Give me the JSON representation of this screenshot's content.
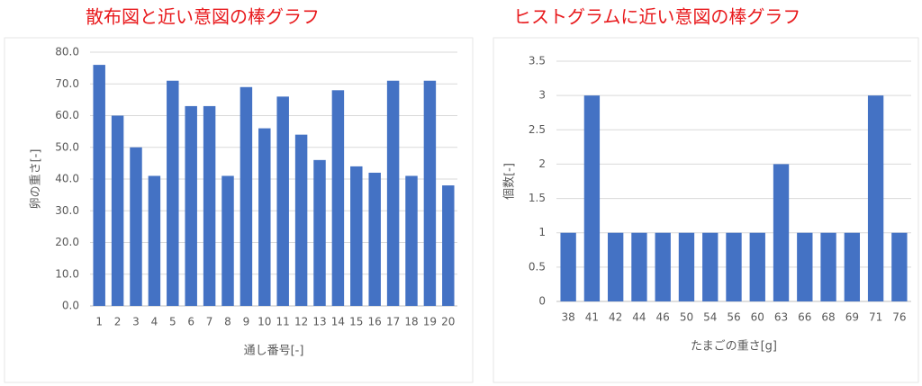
{
  "chart_data": [
    {
      "type": "bar",
      "title": "散布図と近い意図の棒グラフ",
      "x_label": "通し番号[-]",
      "y_label": "卵の重さ[-]",
      "categories": [
        "1",
        "2",
        "3",
        "4",
        "5",
        "6",
        "7",
        "8",
        "9",
        "10",
        "11",
        "12",
        "13",
        "14",
        "15",
        "16",
        "17",
        "18",
        "19",
        "20"
      ],
      "values": [
        76,
        60,
        50,
        41,
        71,
        63,
        63,
        41,
        69,
        56,
        66,
        54,
        46,
        68,
        44,
        42,
        71,
        41,
        71,
        38
      ],
      "color": "#4472c4",
      "ylim": [
        0,
        80
      ],
      "yticks": [
        {
          "value": 0,
          "label": "0.0"
        },
        {
          "value": 10,
          "label": "10.0"
        },
        {
          "value": 20,
          "label": "20.0"
        },
        {
          "value": 30,
          "label": "30.0"
        },
        {
          "value": 40,
          "label": "40.0"
        },
        {
          "value": 50,
          "label": "50.0"
        },
        {
          "value": 60,
          "label": "60.0"
        },
        {
          "value": 70,
          "label": "70.0"
        },
        {
          "value": 80,
          "label": "80.0"
        }
      ],
      "grid": true
    },
    {
      "type": "bar",
      "title": "ヒストグラムに近い意図の棒グラフ",
      "x_label": "たまごの重さ[g]",
      "y_label": "個数[-]",
      "categories": [
        "38",
        "41",
        "42",
        "44",
        "46",
        "50",
        "54",
        "56",
        "60",
        "63",
        "66",
        "68",
        "69",
        "71",
        "76"
      ],
      "values": [
        1,
        3,
        1,
        1,
        1,
        1,
        1,
        1,
        1,
        2,
        1,
        1,
        1,
        3,
        1
      ],
      "color": "#4472c4",
      "ylim": [
        0,
        3.5
      ],
      "yticks": [
        0,
        0.5,
        1,
        1.5,
        2,
        2.5,
        3,
        3.5
      ],
      "grid": true
    }
  ]
}
